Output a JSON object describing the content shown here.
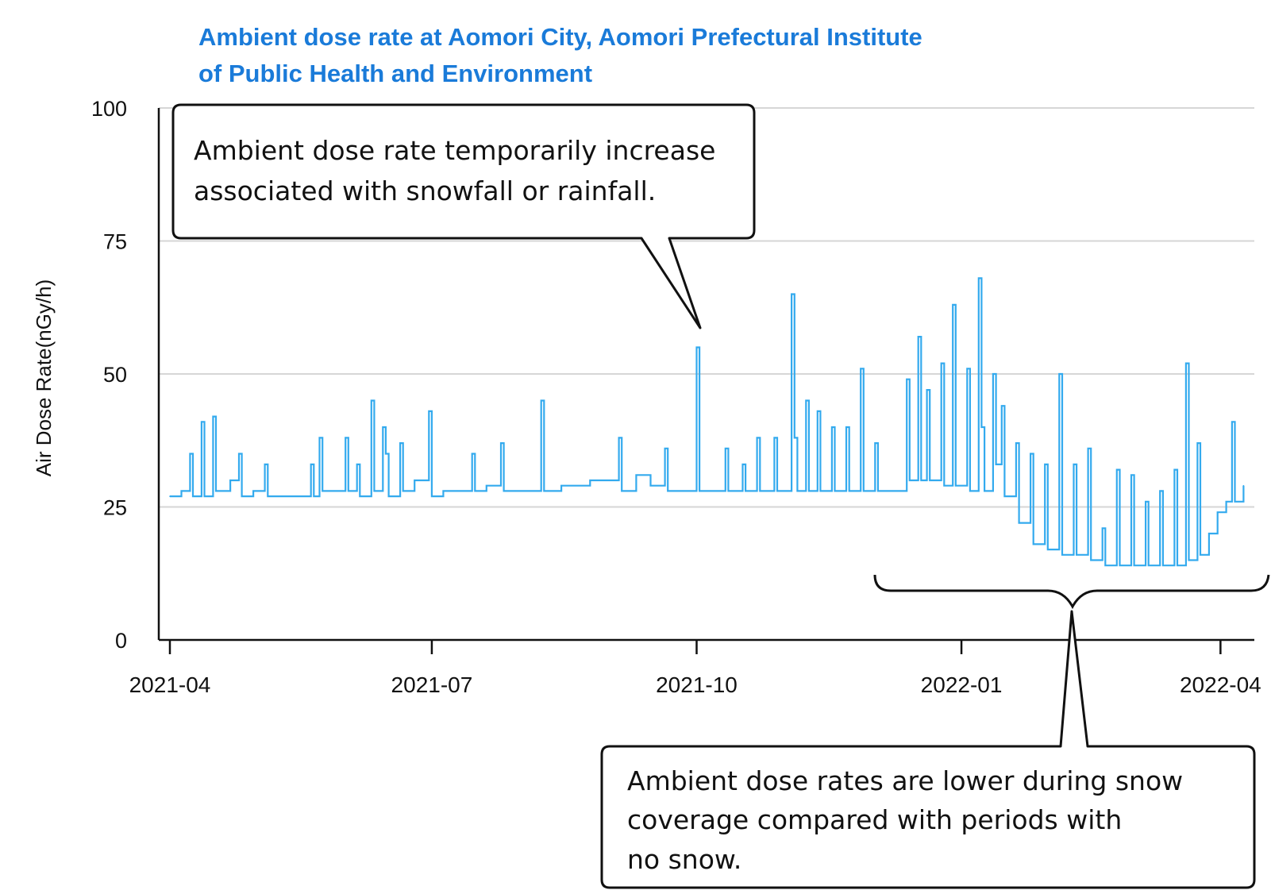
{
  "chart_data": {
    "type": "line",
    "title": "Ambient dose rate at Aomori City, Aomori Prefectural Institute of Public Health and Environment",
    "title_lines": [
      "Ambient dose rate at Aomori City, Aomori Prefectural Institute",
      "of Public Health and Environment"
    ],
    "ylabel": "Air Dose Rate(nGy/h)",
    "xlabel": "",
    "ylim": [
      0,
      100
    ],
    "yticks": [
      0,
      25,
      50,
      75,
      100
    ],
    "xlim": [
      "2021-04-01",
      "2022-04-10"
    ],
    "xticks": [
      {
        "date": "2021-04-01",
        "label": "2021-04"
      },
      {
        "date": "2021-07-01",
        "label": "2021-07"
      },
      {
        "date": "2021-10-01",
        "label": "2021-10"
      },
      {
        "date": "2022-01-01",
        "label": "2022-01"
      },
      {
        "date": "2022-04-01",
        "label": "2022-04"
      }
    ],
    "grid": true,
    "series_color": "#33aaee",
    "series": [
      {
        "name": "",
        "points": [
          [
            "2021-04-01",
            27
          ],
          [
            "2021-04-05",
            28
          ],
          [
            "2021-04-08",
            35
          ],
          [
            "2021-04-09",
            27
          ],
          [
            "2021-04-12",
            41
          ],
          [
            "2021-04-13",
            27
          ],
          [
            "2021-04-16",
            42
          ],
          [
            "2021-04-17",
            28
          ],
          [
            "2021-04-22",
            30
          ],
          [
            "2021-04-25",
            35
          ],
          [
            "2021-04-26",
            27
          ],
          [
            "2021-04-30",
            28
          ],
          [
            "2021-05-04",
            33
          ],
          [
            "2021-05-05",
            27
          ],
          [
            "2021-05-10",
            27
          ],
          [
            "2021-05-15",
            27
          ],
          [
            "2021-05-20",
            33
          ],
          [
            "2021-05-21",
            27
          ],
          [
            "2021-05-23",
            38
          ],
          [
            "2021-05-24",
            28
          ],
          [
            "2021-05-28",
            28
          ],
          [
            "2021-06-01",
            38
          ],
          [
            "2021-06-02",
            28
          ],
          [
            "2021-06-05",
            33
          ],
          [
            "2021-06-06",
            27
          ],
          [
            "2021-06-10",
            45
          ],
          [
            "2021-06-11",
            28
          ],
          [
            "2021-06-14",
            40
          ],
          [
            "2021-06-15",
            35
          ],
          [
            "2021-06-16",
            27
          ],
          [
            "2021-06-20",
            37
          ],
          [
            "2021-06-21",
            28
          ],
          [
            "2021-06-25",
            30
          ],
          [
            "2021-06-30",
            43
          ],
          [
            "2021-07-01",
            27
          ],
          [
            "2021-07-05",
            28
          ],
          [
            "2021-07-10",
            28
          ],
          [
            "2021-07-15",
            35
          ],
          [
            "2021-07-16",
            28
          ],
          [
            "2021-07-20",
            29
          ],
          [
            "2021-07-25",
            37
          ],
          [
            "2021-07-26",
            28
          ],
          [
            "2021-07-30",
            28
          ],
          [
            "2021-08-04",
            28
          ],
          [
            "2021-08-08",
            45
          ],
          [
            "2021-08-09",
            28
          ],
          [
            "2021-08-15",
            29
          ],
          [
            "2021-08-20",
            29
          ],
          [
            "2021-08-25",
            30
          ],
          [
            "2021-08-30",
            30
          ],
          [
            "2021-09-04",
            38
          ],
          [
            "2021-09-05",
            28
          ],
          [
            "2021-09-10",
            31
          ],
          [
            "2021-09-15",
            29
          ],
          [
            "2021-09-20",
            36
          ],
          [
            "2021-09-21",
            28
          ],
          [
            "2021-09-26",
            28
          ],
          [
            "2021-10-01",
            55
          ],
          [
            "2021-10-02",
            28
          ],
          [
            "2021-10-06",
            28
          ],
          [
            "2021-10-11",
            36
          ],
          [
            "2021-10-12",
            28
          ],
          [
            "2021-10-17",
            33
          ],
          [
            "2021-10-18",
            28
          ],
          [
            "2021-10-22",
            38
          ],
          [
            "2021-10-23",
            28
          ],
          [
            "2021-10-28",
            38
          ],
          [
            "2021-10-29",
            28
          ],
          [
            "2021-11-03",
            65
          ],
          [
            "2021-11-04",
            38
          ],
          [
            "2021-11-05",
            28
          ],
          [
            "2021-11-08",
            45
          ],
          [
            "2021-11-09",
            28
          ],
          [
            "2021-11-12",
            43
          ],
          [
            "2021-11-13",
            28
          ],
          [
            "2021-11-17",
            40
          ],
          [
            "2021-11-18",
            28
          ],
          [
            "2021-11-22",
            40
          ],
          [
            "2021-11-23",
            28
          ],
          [
            "2021-11-27",
            51
          ],
          [
            "2021-11-28",
            28
          ],
          [
            "2021-12-02",
            37
          ],
          [
            "2021-12-03",
            28
          ],
          [
            "2021-12-08",
            28
          ],
          [
            "2021-12-13",
            49
          ],
          [
            "2021-12-14",
            30
          ],
          [
            "2021-12-17",
            57
          ],
          [
            "2021-12-18",
            30
          ],
          [
            "2021-12-20",
            47
          ],
          [
            "2021-12-21",
            30
          ],
          [
            "2021-12-25",
            52
          ],
          [
            "2021-12-26",
            29
          ],
          [
            "2021-12-29",
            63
          ],
          [
            "2021-12-30",
            29
          ],
          [
            "2022-01-03",
            51
          ],
          [
            "2022-01-04",
            28
          ],
          [
            "2022-01-07",
            68
          ],
          [
            "2022-01-08",
            40
          ],
          [
            "2022-01-09",
            28
          ],
          [
            "2022-01-12",
            50
          ],
          [
            "2022-01-13",
            33
          ],
          [
            "2022-01-15",
            44
          ],
          [
            "2022-01-16",
            27
          ],
          [
            "2022-01-20",
            37
          ],
          [
            "2022-01-21",
            22
          ],
          [
            "2022-01-25",
            35
          ],
          [
            "2022-01-26",
            18
          ],
          [
            "2022-01-30",
            33
          ],
          [
            "2022-01-31",
            17
          ],
          [
            "2022-02-04",
            50
          ],
          [
            "2022-02-05",
            16
          ],
          [
            "2022-02-09",
            33
          ],
          [
            "2022-02-10",
            16
          ],
          [
            "2022-02-14",
            36
          ],
          [
            "2022-02-15",
            15
          ],
          [
            "2022-02-19",
            21
          ],
          [
            "2022-02-20",
            14
          ],
          [
            "2022-02-24",
            32
          ],
          [
            "2022-02-25",
            14
          ],
          [
            "2022-03-01",
            31
          ],
          [
            "2022-03-02",
            14
          ],
          [
            "2022-03-06",
            26
          ],
          [
            "2022-03-07",
            14
          ],
          [
            "2022-03-11",
            28
          ],
          [
            "2022-03-12",
            14
          ],
          [
            "2022-03-16",
            32
          ],
          [
            "2022-03-17",
            14
          ],
          [
            "2022-03-20",
            52
          ],
          [
            "2022-03-21",
            15
          ],
          [
            "2022-03-24",
            37
          ],
          [
            "2022-03-25",
            16
          ],
          [
            "2022-03-28",
            20
          ],
          [
            "2022-03-31",
            24
          ],
          [
            "2022-04-03",
            26
          ],
          [
            "2022-04-05",
            41
          ],
          [
            "2022-04-06",
            26
          ],
          [
            "2022-04-09",
            29
          ]
        ]
      }
    ],
    "annotations": [
      {
        "text_lines": [
          "Ambient dose rate temporarily increase",
          "associated with snowfall or rainfall."
        ]
      },
      {
        "text_lines": [
          "Ambient dose  rates are lower during snow",
          "coverage compared with periods with",
          "no snow."
        ]
      }
    ]
  }
}
